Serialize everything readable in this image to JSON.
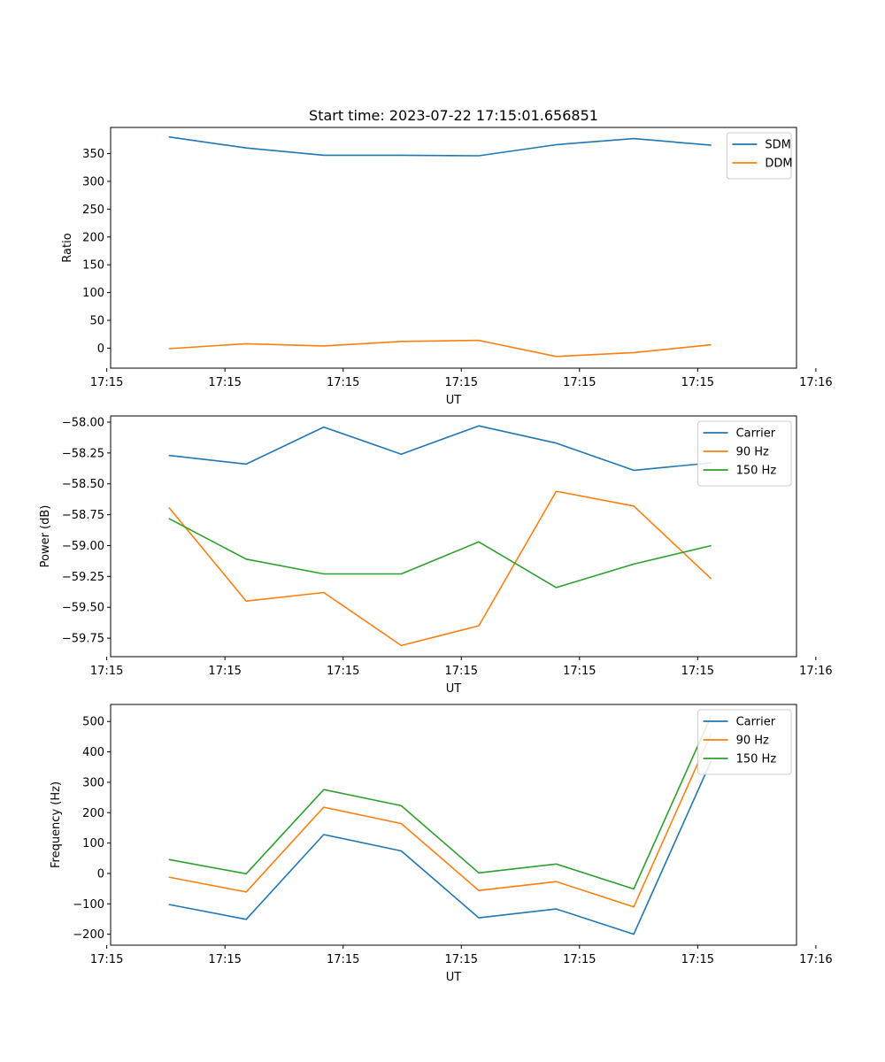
{
  "chart_data": [
    {
      "type": "line",
      "title": "Start time: 2023-07-22 17:15:01.656851",
      "xlabel": "UT",
      "ylabel": "Ratio",
      "x": [
        1,
        2,
        3,
        4,
        5,
        6,
        7,
        8
      ],
      "xlim": [
        0.25,
        9.1
      ],
      "x_ticks": [
        0.2,
        1.725,
        3.25,
        4.775,
        6.3,
        7.825,
        9.35
      ],
      "x_tick_labels": [
        "17:15",
        "17:15",
        "17:15",
        "17:15",
        "17:15",
        "17:15",
        "17:16"
      ],
      "ylim": [
        -36,
        397
      ],
      "y_ticks": [
        0,
        50,
        100,
        150,
        200,
        250,
        300,
        350
      ],
      "y_tick_labels": [
        "0",
        "50",
        "100",
        "150",
        "200",
        "250",
        "300",
        "350"
      ],
      "legend_position": "top-right",
      "series": [
        {
          "name": "SDM",
          "color": "#1f77b4",
          "values": [
            380,
            360,
            347,
            347,
            346,
            366,
            377,
            365
          ]
        },
        {
          "name": "DDM",
          "color": "#ff7f0e",
          "values": [
            -1,
            8,
            4,
            12,
            14,
            -15,
            -8,
            6
          ]
        }
      ]
    },
    {
      "type": "line",
      "title": "",
      "xlabel": "UT",
      "ylabel": "Power (dB)",
      "x": [
        1,
        2,
        3,
        4,
        5,
        6,
        7,
        8
      ],
      "xlim": [
        0.25,
        9.1
      ],
      "x_ticks": [
        0.2,
        1.725,
        3.25,
        4.775,
        6.3,
        7.825,
        9.35
      ],
      "x_tick_labels": [
        "17:15",
        "17:15",
        "17:15",
        "17:15",
        "17:15",
        "17:15",
        "17:16"
      ],
      "ylim": [
        -59.9,
        -57.95
      ],
      "y_ticks": [
        -59.75,
        -59.5,
        -59.25,
        -59.0,
        -58.75,
        -58.5,
        -58.25,
        -58.0
      ],
      "y_tick_labels": [
        "−59.75",
        "−59.50",
        "−59.25",
        "−59.00",
        "−58.75",
        "−58.50",
        "−58.25",
        "−58.00"
      ],
      "legend_position": "top-right",
      "series": [
        {
          "name": "Carrier",
          "color": "#1f77b4",
          "values": [
            -58.27,
            -58.34,
            -58.04,
            -58.26,
            -58.03,
            -58.17,
            -58.39,
            -58.33
          ]
        },
        {
          "name": "90 Hz",
          "color": "#ff7f0e",
          "values": [
            -58.69,
            -59.45,
            -59.38,
            -59.81,
            -59.65,
            -58.56,
            -58.68,
            -59.27
          ]
        },
        {
          "name": "150 Hz",
          "color": "#2ca02c",
          "values": [
            -58.78,
            -59.11,
            -59.23,
            -59.23,
            -58.97,
            -59.34,
            -59.15,
            -59.0
          ]
        }
      ]
    },
    {
      "type": "line",
      "title": "",
      "xlabel": "UT",
      "ylabel": "Frequency (Hz)",
      "x": [
        1,
        2,
        3,
        4,
        5,
        6,
        7,
        8
      ],
      "xlim": [
        0.25,
        9.1
      ],
      "x_ticks": [
        0.2,
        1.725,
        3.25,
        4.775,
        6.3,
        7.825,
        9.35
      ],
      "x_tick_labels": [
        "17:15",
        "17:15",
        "17:15",
        "17:15",
        "17:15",
        "17:15",
        "17:16"
      ],
      "ylim": [
        -236,
        556
      ],
      "y_ticks": [
        -200,
        -100,
        0,
        100,
        200,
        300,
        400,
        500
      ],
      "y_tick_labels": [
        "−200",
        "−100",
        "0",
        "100",
        "200",
        "300",
        "400",
        "500"
      ],
      "legend_position": "top-right",
      "series": [
        {
          "name": "Carrier",
          "color": "#1f77b4",
          "values": [
            -102,
            -151,
            128,
            74,
            -146,
            -117,
            -200,
            371
          ]
        },
        {
          "name": "90 Hz",
          "color": "#ff7f0e",
          "values": [
            -12,
            -61,
            218,
            164,
            -56,
            -27,
            -110,
            461
          ]
        },
        {
          "name": "150 Hz",
          "color": "#2ca02c",
          "values": [
            46,
            -1,
            276,
            223,
            2,
            31,
            -51,
            519
          ]
        }
      ]
    }
  ]
}
